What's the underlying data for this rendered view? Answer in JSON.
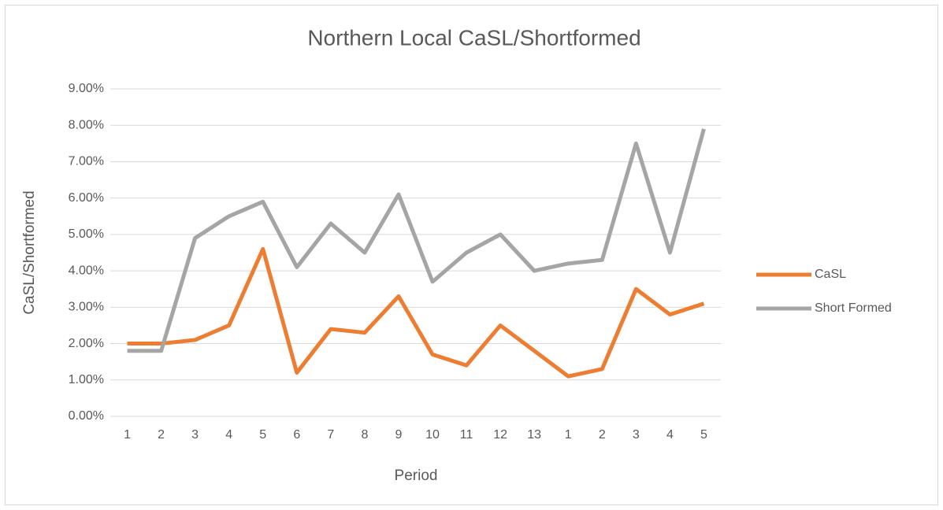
{
  "chart_data": {
    "type": "line",
    "title": "Northern Local CaSL/Shortformed",
    "x_label": "Period",
    "y_label": "CaSL/Shortformed",
    "categories": [
      "1",
      "2",
      "3",
      "4",
      "5",
      "6",
      "7",
      "8",
      "9",
      "10",
      "11",
      "12",
      "13",
      "1",
      "2",
      "3",
      "4",
      "5"
    ],
    "series": [
      {
        "name": "CaSL",
        "color": "#ed7d31",
        "values": [
          2.0,
          2.0,
          2.1,
          2.5,
          4.6,
          1.2,
          2.4,
          2.3,
          3.3,
          1.7,
          1.4,
          2.5,
          1.8,
          1.1,
          1.3,
          3.5,
          2.8,
          3.1
        ]
      },
      {
        "name": "Short Formed",
        "color": "#a5a5a5",
        "values": [
          1.8,
          1.8,
          4.9,
          5.5,
          5.9,
          4.1,
          5.3,
          4.5,
          6.1,
          3.7,
          4.5,
          5.0,
          4.0,
          4.2,
          4.3,
          7.5,
          4.5,
          7.9
        ]
      }
    ],
    "ylim": [
      0,
      9
    ],
    "yticks": [
      {
        "value": 0,
        "label": "0.00%"
      },
      {
        "value": 1,
        "label": "1.00%"
      },
      {
        "value": 2,
        "label": "2.00%"
      },
      {
        "value": 3,
        "label": "3.00%"
      },
      {
        "value": 4,
        "label": "4.00%"
      },
      {
        "value": 5,
        "label": "5.00%"
      },
      {
        "value": 6,
        "label": "6.00%"
      },
      {
        "value": 7,
        "label": "7.00%"
      },
      {
        "value": 8,
        "label": "8.00%"
      },
      {
        "value": 9,
        "label": "9.00%"
      }
    ],
    "grid": true,
    "legend": "right"
  }
}
